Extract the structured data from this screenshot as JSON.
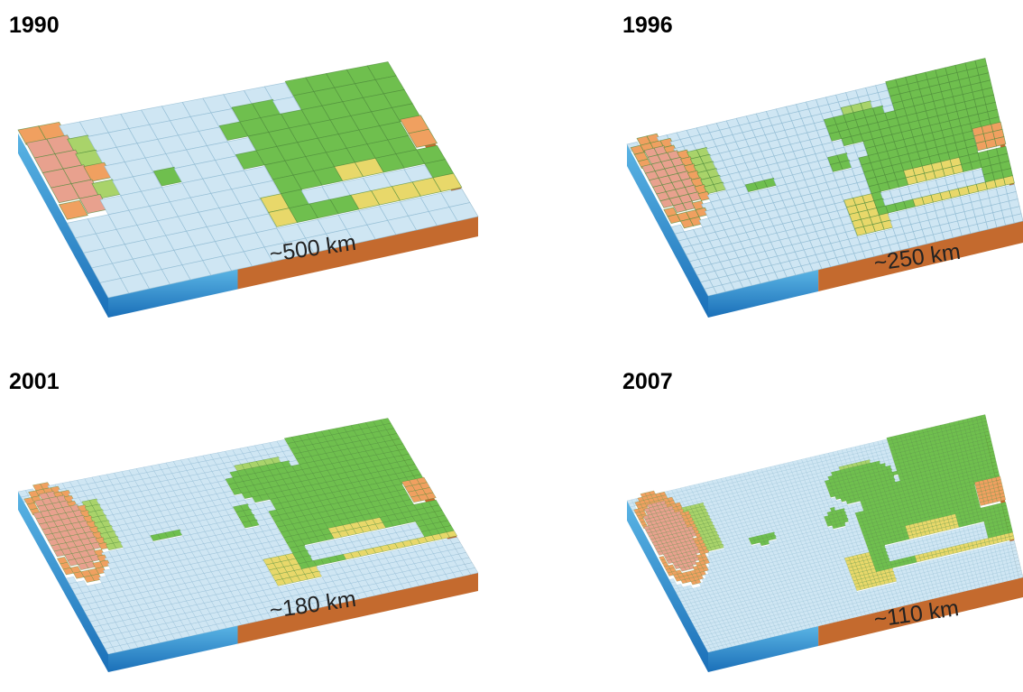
{
  "panels": [
    {
      "year": "1990",
      "resolution": "~500 km",
      "cells": [
        18,
        11
      ]
    },
    {
      "year": "1996",
      "resolution": "~250 km",
      "cells": [
        36,
        22
      ]
    },
    {
      "year": "2001",
      "resolution": "~180 km",
      "cells": [
        50,
        30
      ]
    },
    {
      "year": "2007",
      "resolution": "~110 km",
      "cells": [
        80,
        48
      ]
    }
  ],
  "colors": {
    "ocean": "#cfe6f3",
    "ocean_edge": "#8ab6d0",
    "land_low": "#6fbf4e",
    "land_mid": "#a9d36a",
    "land_high": "#e8d86a",
    "mountain": "#f0a060",
    "peak": "#e8a18e",
    "soil_top": "#d07a3c",
    "soil_side": "#c46a2e",
    "water_side_top": "#5ab4e4",
    "water_side_bottom": "#1a6fb8"
  }
}
